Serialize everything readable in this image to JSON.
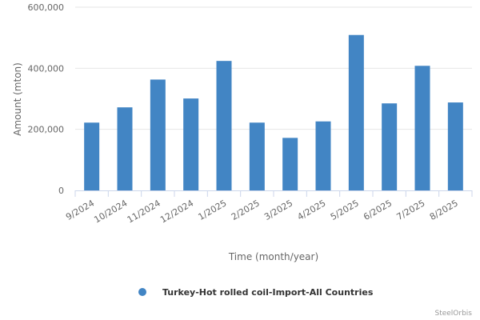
{
  "chart_data": {
    "type": "bar",
    "categories": [
      "9/2024",
      "10/2024",
      "11/2024",
      "12/2024",
      "1/2025",
      "2/2025",
      "3/2025",
      "4/2025",
      "5/2025",
      "6/2025",
      "7/2025",
      "8/2025"
    ],
    "series": [
      {
        "name": "Turkey-Hot rolled coil-Import-All Countries",
        "color": "#4285c4",
        "values": [
          222000,
          272000,
          363000,
          301000,
          424000,
          222000,
          172000,
          226000,
          509000,
          285000,
          408000,
          288000
        ]
      }
    ],
    "xlabel": "Time (month/year)",
    "ylabel": "Amount (mton)",
    "ylim": [
      0,
      600000
    ],
    "yticks": [
      0,
      200000,
      400000,
      600000
    ],
    "ytick_labels": [
      "0",
      "200,000",
      "400,000",
      "600,000"
    ],
    "grid": true,
    "legend_position": "bottom-center"
  },
  "credits": "SteelOrbis"
}
